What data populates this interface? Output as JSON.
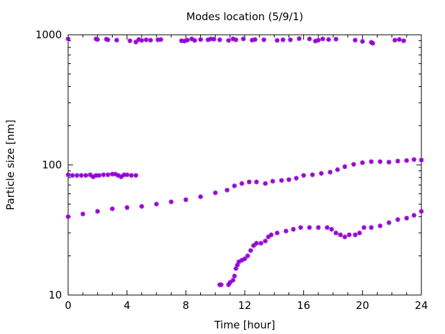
{
  "chart_data": {
    "type": "scatter",
    "title": "Modes location (5/9/1)",
    "xlabel": "Time [hour]",
    "ylabel": "Particle size [nm]",
    "xlim": [
      0,
      24
    ],
    "ylim": [
      10,
      1000
    ],
    "yscale": "log",
    "grid": false,
    "legend": "none",
    "marker_color": "#9400d3",
    "marker": "star",
    "x_ticks": [
      0,
      4,
      8,
      12,
      16,
      20,
      24
    ],
    "x_tick_labels": [
      "0",
      "4",
      "8",
      "12",
      "16",
      "20",
      "24"
    ],
    "y_ticks": [
      10,
      100,
      1000
    ],
    "y_tick_labels": [
      "10",
      "100",
      "1000"
    ],
    "series": [
      {
        "points": [
          [
            0.0,
            930
          ],
          [
            1.9,
            930
          ],
          [
            2.0,
            920
          ],
          [
            2.6,
            925
          ],
          [
            2.7,
            915
          ],
          [
            3.3,
            910
          ],
          [
            4.2,
            900
          ],
          [
            4.6,
            880
          ],
          [
            4.8,
            920
          ],
          [
            5.0,
            905
          ],
          [
            5.3,
            915
          ],
          [
            5.6,
            910
          ],
          [
            6.1,
            915
          ],
          [
            6.3,
            920
          ],
          [
            7.7,
            900
          ],
          [
            7.9,
            895
          ],
          [
            8.1,
            910
          ],
          [
            8.4,
            930
          ],
          [
            8.6,
            905
          ],
          [
            9.0,
            920
          ],
          [
            9.5,
            915
          ],
          [
            9.7,
            930
          ],
          [
            9.9,
            925
          ],
          [
            10.3,
            915
          ],
          [
            10.9,
            905
          ],
          [
            11.2,
            930
          ],
          [
            11.4,
            915
          ],
          [
            11.9,
            930
          ],
          [
            12.5,
            910
          ],
          [
            12.7,
            920
          ],
          [
            13.3,
            915
          ],
          [
            14.2,
            905
          ],
          [
            14.6,
            915
          ],
          [
            15.1,
            915
          ],
          [
            15.7,
            935
          ],
          [
            16.4,
            930
          ],
          [
            16.8,
            895
          ],
          [
            17.0,
            910
          ],
          [
            17.3,
            930
          ],
          [
            17.7,
            920
          ],
          [
            18.2,
            925
          ],
          [
            19.5,
            910
          ],
          [
            20.0,
            890
          ],
          [
            20.6,
            875
          ],
          [
            20.7,
            860
          ],
          [
            22.2,
            910
          ],
          [
            22.5,
            920
          ],
          [
            22.8,
            900
          ]
        ]
      },
      {
        "points": [
          [
            0.0,
            84
          ],
          [
            0.3,
            83
          ],
          [
            0.6,
            83
          ],
          [
            0.9,
            83
          ],
          [
            1.2,
            83
          ],
          [
            1.5,
            84
          ],
          [
            1.7,
            81
          ],
          [
            1.9,
            83
          ],
          [
            2.1,
            83
          ],
          [
            2.4,
            84
          ],
          [
            2.7,
            84
          ],
          [
            3.0,
            85
          ],
          [
            3.2,
            85
          ],
          [
            3.4,
            83
          ],
          [
            3.6,
            81
          ],
          [
            3.8,
            84
          ],
          [
            4.0,
            84
          ],
          [
            4.3,
            83
          ],
          [
            4.6,
            83
          ]
        ]
      },
      {
        "points": [
          [
            0.0,
            40
          ],
          [
            1.0,
            42
          ],
          [
            2.0,
            44
          ],
          [
            3.0,
            46
          ],
          [
            4.0,
            47
          ],
          [
            5.0,
            48
          ],
          [
            6.0,
            50
          ],
          [
            7.0,
            52
          ],
          [
            8.0,
            54
          ],
          [
            9.0,
            57
          ],
          [
            10.0,
            61
          ],
          [
            10.8,
            64
          ],
          [
            11.3,
            69
          ],
          [
            11.8,
            72
          ],
          [
            12.3,
            74
          ],
          [
            12.8,
            74
          ],
          [
            13.4,
            72
          ],
          [
            13.9,
            75
          ],
          [
            14.5,
            76
          ],
          [
            15.0,
            77
          ],
          [
            15.5,
            79
          ],
          [
            16.0,
            83
          ],
          [
            16.6,
            84
          ],
          [
            17.2,
            86
          ],
          [
            17.8,
            88
          ],
          [
            18.3,
            92
          ],
          [
            18.8,
            97
          ],
          [
            19.4,
            101
          ],
          [
            20.0,
            104
          ],
          [
            20.6,
            106
          ],
          [
            21.2,
            106
          ],
          [
            21.8,
            105
          ],
          [
            22.4,
            107
          ],
          [
            23.0,
            108
          ],
          [
            23.5,
            110
          ],
          [
            24.0,
            109
          ]
        ]
      },
      {
        "points": [
          [
            10.3,
            12
          ],
          [
            10.4,
            12
          ],
          [
            10.9,
            12
          ],
          [
            11.0,
            12.5
          ],
          [
            11.2,
            13
          ],
          [
            11.3,
            14
          ],
          [
            11.4,
            16
          ],
          [
            11.5,
            17
          ],
          [
            11.6,
            18
          ],
          [
            11.8,
            18.5
          ],
          [
            12.0,
            19
          ],
          [
            12.2,
            20
          ],
          [
            12.4,
            22
          ],
          [
            12.6,
            24
          ],
          [
            12.8,
            25
          ],
          [
            13.1,
            25
          ],
          [
            13.4,
            26
          ],
          [
            13.6,
            28
          ],
          [
            13.8,
            29
          ],
          [
            14.2,
            30
          ],
          [
            14.8,
            31
          ],
          [
            15.3,
            32
          ],
          [
            15.8,
            33
          ],
          [
            16.4,
            33
          ],
          [
            17.0,
            33
          ],
          [
            17.6,
            33
          ],
          [
            17.9,
            32
          ],
          [
            18.2,
            30
          ],
          [
            18.5,
            29
          ],
          [
            18.8,
            28
          ],
          [
            19.1,
            29
          ],
          [
            19.5,
            29
          ],
          [
            19.8,
            30
          ],
          [
            20.1,
            33
          ],
          [
            20.6,
            33
          ],
          [
            21.2,
            34
          ],
          [
            21.8,
            36
          ],
          [
            22.4,
            38
          ],
          [
            23.0,
            39
          ],
          [
            23.5,
            41
          ],
          [
            24.0,
            44
          ]
        ]
      }
    ]
  }
}
